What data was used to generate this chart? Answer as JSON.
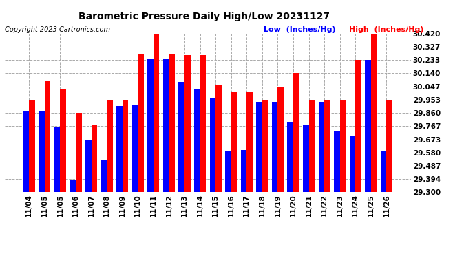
{
  "title": "Barometric Pressure Daily High/Low 20231127",
  "copyright": "Copyright 2023 Cartronics.com",
  "legend_low": "Low  (Inches/Hg)",
  "legend_high": "High  (Inches/Hg)",
  "categories": [
    "11/04",
    "11/05",
    "11/05",
    "11/06",
    "11/07",
    "11/08",
    "11/09",
    "11/10",
    "11/11",
    "11/12",
    "11/13",
    "11/14",
    "11/15",
    "11/16",
    "11/17",
    "11/18",
    "11/19",
    "11/20",
    "11/21",
    "11/22",
    "11/23",
    "11/24",
    "11/25",
    "11/26"
  ],
  "low_values": [
    29.87,
    29.877,
    29.76,
    29.39,
    29.67,
    29.527,
    29.91,
    29.916,
    30.24,
    30.24,
    30.08,
    30.03,
    29.96,
    29.595,
    29.6,
    29.94,
    29.94,
    29.79,
    29.78,
    29.94,
    29.73,
    29.7,
    30.233,
    29.59
  ],
  "high_values": [
    29.953,
    30.083,
    30.027,
    29.86,
    29.78,
    29.953,
    29.953,
    30.28,
    30.42,
    30.28,
    30.27,
    30.27,
    30.06,
    30.01,
    30.01,
    29.953,
    30.047,
    30.14,
    29.953,
    29.953,
    29.953,
    30.233,
    30.42,
    29.953
  ],
  "ylim_min": 29.3,
  "ylim_max": 30.42,
  "yticks": [
    29.3,
    29.394,
    29.487,
    29.58,
    29.673,
    29.767,
    29.86,
    29.953,
    30.047,
    30.14,
    30.233,
    30.327,
    30.42
  ],
  "bar_color_low": "#0000FF",
  "bar_color_high": "#FF0000",
  "bg_color": "#FFFFFF",
  "grid_color": "#AAAAAA",
  "title_color": "#000000",
  "copyright_color": "#000000",
  "legend_low_color": "#0000FF",
  "legend_high_color": "#FF0000",
  "title_fontsize": 10,
  "copyright_fontsize": 7,
  "legend_fontsize": 8,
  "tick_fontsize": 7.5
}
